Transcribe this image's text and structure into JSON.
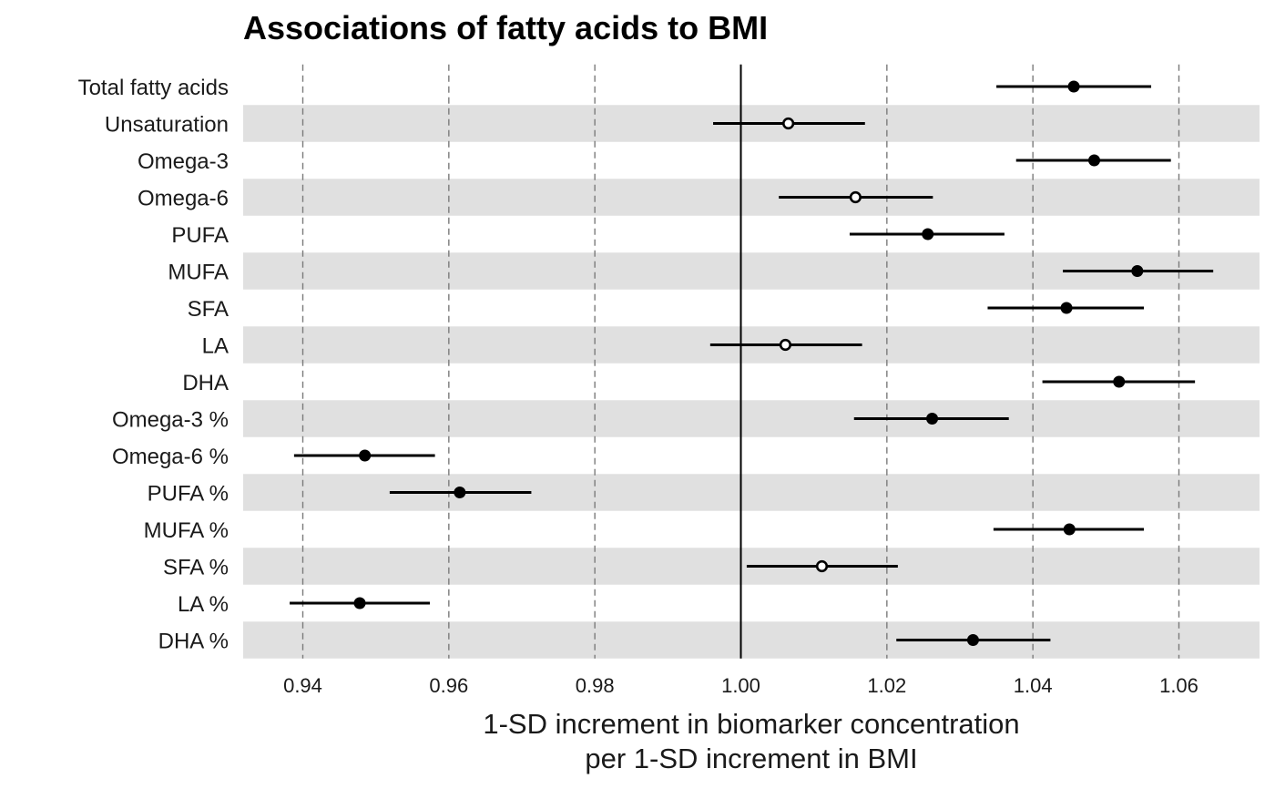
{
  "chart_data": {
    "type": "forest",
    "title": "Associations of fatty acids to BMI",
    "xlabel": [
      "1-SD increment in biomarker concentration",
      "per 1-SD increment in BMI"
    ],
    "xlim": [
      0.9335,
      1.0715
    ],
    "x_ticks": [
      0.94,
      0.96,
      0.98,
      1.0,
      1.02,
      1.04,
      1.06
    ],
    "x_tick_labels": [
      "0.94",
      "0.96",
      "0.98",
      "1.00",
      "1.02",
      "1.04",
      "1.06"
    ],
    "reference_line": 1.0,
    "grid": "dashed vertical",
    "rows": [
      {
        "label": "Total fatty acids",
        "estimate": 1.0456,
        "lower": 1.035,
        "upper": 1.0562,
        "significant": true
      },
      {
        "label": "Unsaturation",
        "estimate": 1.0065,
        "lower": 0.9962,
        "upper": 1.017,
        "significant": false
      },
      {
        "label": "Omega-3",
        "estimate": 1.0484,
        "lower": 1.0377,
        "upper": 1.0589,
        "significant": true
      },
      {
        "label": "Omega-6",
        "estimate": 1.0157,
        "lower": 1.0052,
        "upper": 1.0263,
        "significant": false
      },
      {
        "label": "PUFA",
        "estimate": 1.0256,
        "lower": 1.0149,
        "upper": 1.0361,
        "significant": true
      },
      {
        "label": "MUFA",
        "estimate": 1.0543,
        "lower": 1.0441,
        "upper": 1.0647,
        "significant": true
      },
      {
        "label": "SFA",
        "estimate": 1.0446,
        "lower": 1.0338,
        "upper": 1.0552,
        "significant": true
      },
      {
        "label": "LA",
        "estimate": 1.0061,
        "lower": 0.9958,
        "upper": 1.0166,
        "significant": false
      },
      {
        "label": "DHA",
        "estimate": 1.0518,
        "lower": 1.0413,
        "upper": 1.0622,
        "significant": true
      },
      {
        "label": "Omega-3 %",
        "estimate": 1.0262,
        "lower": 1.0155,
        "upper": 1.0367,
        "significant": true
      },
      {
        "label": "Omega-6 %",
        "estimate": 0.9485,
        "lower": 0.9388,
        "upper": 0.9581,
        "significant": true
      },
      {
        "label": "PUFA %",
        "estimate": 0.9615,
        "lower": 0.9519,
        "upper": 0.9713,
        "significant": true
      },
      {
        "label": "MUFA %",
        "estimate": 1.045,
        "lower": 1.0346,
        "upper": 1.0552,
        "significant": true
      },
      {
        "label": "SFA %",
        "estimate": 1.0111,
        "lower": 1.0008,
        "upper": 1.0215,
        "significant": false
      },
      {
        "label": "LA %",
        "estimate": 0.9478,
        "lower": 0.9382,
        "upper": 0.9574,
        "significant": true
      },
      {
        "label": "DHA %",
        "estimate": 1.0318,
        "lower": 1.0213,
        "upper": 1.0424,
        "significant": true
      }
    ]
  }
}
